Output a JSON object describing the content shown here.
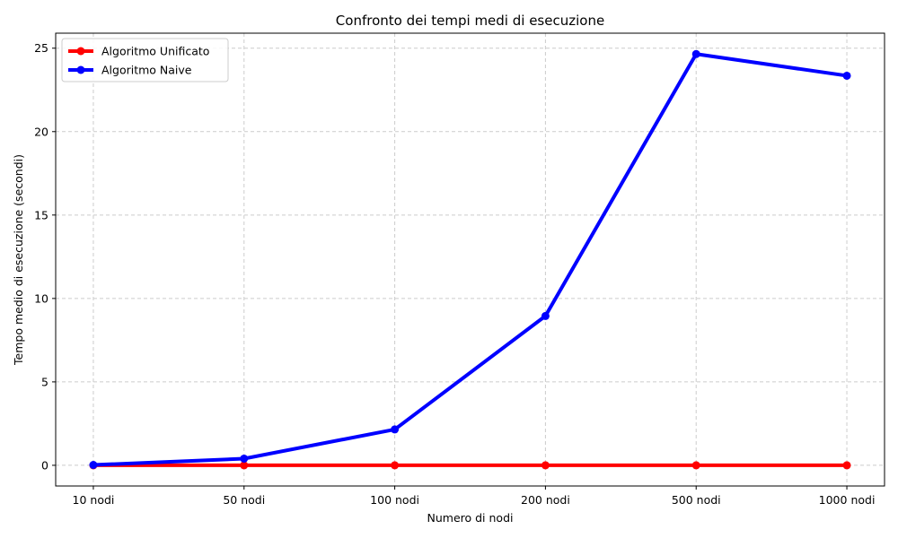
{
  "chart_data": {
    "type": "line",
    "title": "Confronto dei tempi medi di esecuzione",
    "xlabel": "Numero di nodi",
    "ylabel": "Tempo medio di esecuzione (secondi)",
    "categories": [
      "10 nodi",
      "50 nodi",
      "100 nodi",
      "200 nodi",
      "500 nodi",
      "1000 nodi"
    ],
    "ylim": [
      -1.24,
      25.9
    ],
    "yticks": [
      0,
      5,
      10,
      15,
      20,
      25
    ],
    "grid": true,
    "legend_position": "top-left",
    "series": [
      {
        "name": "Algoritmo Unificato",
        "color": "#ff0000",
        "values": [
          0.0,
          0.0,
          0.0,
          0.0,
          0.0,
          0.0
        ]
      },
      {
        "name": "Algoritmo Naive",
        "color": "#0000ff",
        "values": [
          0.02,
          0.4,
          2.15,
          8.95,
          24.65,
          23.35
        ]
      }
    ]
  }
}
